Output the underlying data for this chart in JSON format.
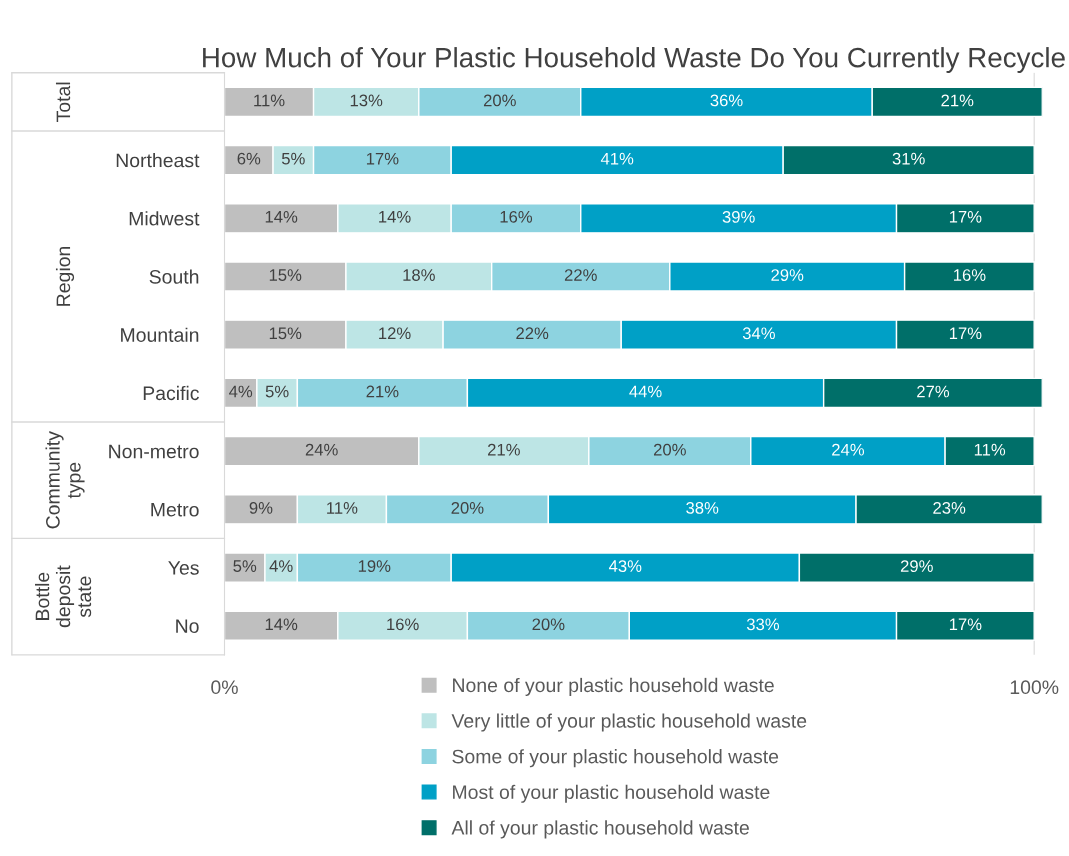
{
  "chart_data": {
    "type": "bar",
    "orientation": "horizontal",
    "stacked": true,
    "title": "How Much of Your Plastic Household Waste Do You Currently Recycle",
    "categories": [
      null,
      "Northeast",
      "Midwest",
      "South",
      "Mountain",
      "Pacific",
      "Non-metro",
      "Metro",
      "Yes",
      "No"
    ],
    "annotations": [
      "Total",
      "Region",
      "Community type",
      "Bottle deposit state"
    ],
    "series": [
      {
        "name": "None of your plastic household waste",
        "color": "#bfbfbf",
        "values": [
          11,
          6,
          14,
          15,
          15,
          4,
          24,
          9,
          5,
          14
        ],
        "value_labels": [
          "11%",
          "6%",
          "14%",
          "15%",
          "15%",
          "4%",
          "24%",
          "9%",
          "5%",
          "14%"
        ]
      },
      {
        "name": "Very little of your plastic household waste",
        "color": "#bde5e5",
        "values": [
          13,
          5,
          14,
          18,
          12,
          5,
          21,
          11,
          4,
          16
        ],
        "value_labels": [
          "13%",
          "5%",
          "14%",
          "18%",
          "12%",
          "5%",
          "21%",
          "11%",
          "4%",
          "16%"
        ]
      },
      {
        "name": "Some of your plastic household waste",
        "color": "#8dd3e0",
        "values": [
          20,
          17,
          16,
          22,
          22,
          21,
          20,
          20,
          19,
          20
        ],
        "value_labels": [
          "20%",
          "17%",
          "16%",
          "22%",
          "22%",
          "21%",
          "20%",
          "20%",
          "19%",
          "20%"
        ]
      },
      {
        "name": "Most of your plastic household waste",
        "color": "#00a0c6",
        "values": [
          36,
          41,
          39,
          29,
          34,
          44,
          24,
          38,
          43,
          33
        ],
        "value_labels": [
          "36%",
          "41%",
          "39%",
          "29%",
          "34%",
          "44%",
          "24%",
          "38%",
          "43%",
          "33%"
        ]
      },
      {
        "name": "All of your plastic household waste",
        "color": "#006f69",
        "values": [
          21,
          31,
          17,
          16,
          17,
          27,
          11,
          23,
          29,
          17
        ],
        "value_labels": [
          "21%",
          "31%",
          "17%",
          "16%",
          "17%",
          "27%",
          "11%",
          "23%",
          "29%",
          "17%"
        ]
      }
    ],
    "xlim": [
      0,
      101
    ],
    "xticks": [
      {
        "value": 0,
        "label": "0%"
      },
      {
        "value": 100,
        "label": "100%"
      }
    ],
    "grid": "x",
    "legend": "bottom"
  }
}
